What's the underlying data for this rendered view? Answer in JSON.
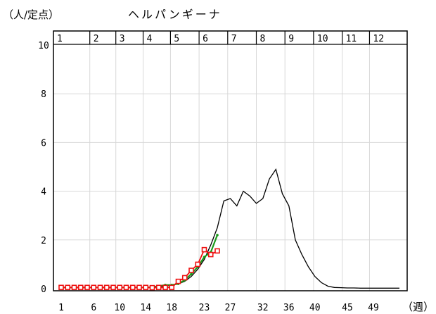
{
  "chart_data": {
    "type": "line",
    "title": "ヘルパンギーナ",
    "ylabel": "（人/定点）",
    "xlabel": "（週）",
    "ylim": [
      0,
      10
    ],
    "xlim": [
      1,
      53
    ],
    "y_ticks": [
      0,
      2,
      4,
      6,
      8,
      10
    ],
    "x_ticks": [
      1,
      6,
      10,
      14,
      18,
      23,
      27,
      32,
      36,
      40,
      45,
      49
    ],
    "months": [
      "1",
      "2",
      "3",
      "4",
      "5",
      "6",
      "7",
      "8",
      "9",
      "10",
      "11",
      "12"
    ],
    "month_start_weeks": [
      1,
      5.4,
      9.4,
      13.6,
      17.8,
      22.2,
      26.6,
      31,
      35.4,
      39.8,
      44.2,
      48.4
    ],
    "grid": true,
    "colors": {
      "black": "#000000",
      "green": "#1a9a1a",
      "red": "#ee1111"
    },
    "series": [
      {
        "style": "black-line",
        "x": [
          1,
          2,
          3,
          4,
          5,
          6,
          7,
          8,
          9,
          10,
          11,
          12,
          13,
          14,
          15,
          16,
          17,
          18,
          19,
          20,
          21,
          22,
          23,
          24,
          25,
          26,
          27,
          28,
          29,
          30,
          31,
          32,
          33,
          34,
          35,
          36,
          37,
          38,
          39,
          40,
          41,
          42,
          43,
          44,
          45,
          46,
          47,
          48,
          49,
          50,
          51,
          52,
          53
        ],
        "y": [
          0.05,
          0.05,
          0.05,
          0.05,
          0.05,
          0.05,
          0.05,
          0.05,
          0.05,
          0.05,
          0.05,
          0.05,
          0.05,
          0.06,
          0.07,
          0.08,
          0.1,
          0.15,
          0.2,
          0.3,
          0.5,
          0.8,
          1.2,
          1.8,
          2.5,
          3.6,
          3.7,
          3.4,
          4.0,
          3.8,
          3.5,
          3.7,
          4.5,
          4.9,
          3.9,
          3.4,
          2.0,
          1.4,
          0.9,
          0.5,
          0.25,
          0.1,
          0.05,
          0.04,
          0.03,
          0.03,
          0.02,
          0.02,
          0.02,
          0.02,
          0.02,
          0.02,
          0.02
        ]
      },
      {
        "style": "green-line",
        "x": [
          1,
          2,
          3,
          4,
          5,
          6,
          7,
          8,
          9,
          10,
          11,
          12,
          13,
          14,
          15,
          16,
          17,
          18,
          19,
          20,
          21,
          22,
          23,
          24,
          25
        ],
        "y": [
          0.05,
          0.05,
          0.05,
          0.05,
          0.05,
          0.05,
          0.05,
          0.05,
          0.05,
          0.05,
          0.05,
          0.05,
          0.05,
          0.05,
          0.06,
          0.1,
          0.15,
          0.15,
          0.2,
          0.35,
          0.6,
          0.9,
          1.3,
          1.5,
          2.2
        ]
      },
      {
        "style": "red-markers",
        "x": [
          1,
          2,
          3,
          4,
          5,
          6,
          7,
          8,
          9,
          10,
          11,
          12,
          13,
          14,
          15,
          16,
          17,
          18,
          19,
          20,
          21,
          22,
          23,
          24,
          25
        ],
        "y": [
          0.05,
          0.05,
          0.05,
          0.05,
          0.05,
          0.05,
          0.05,
          0.05,
          0.05,
          0.05,
          0.05,
          0.05,
          0.05,
          0.05,
          0.04,
          0.05,
          0.05,
          0.05,
          0.3,
          0.45,
          0.75,
          1.0,
          1.6,
          1.4,
          1.55
        ]
      }
    ]
  }
}
